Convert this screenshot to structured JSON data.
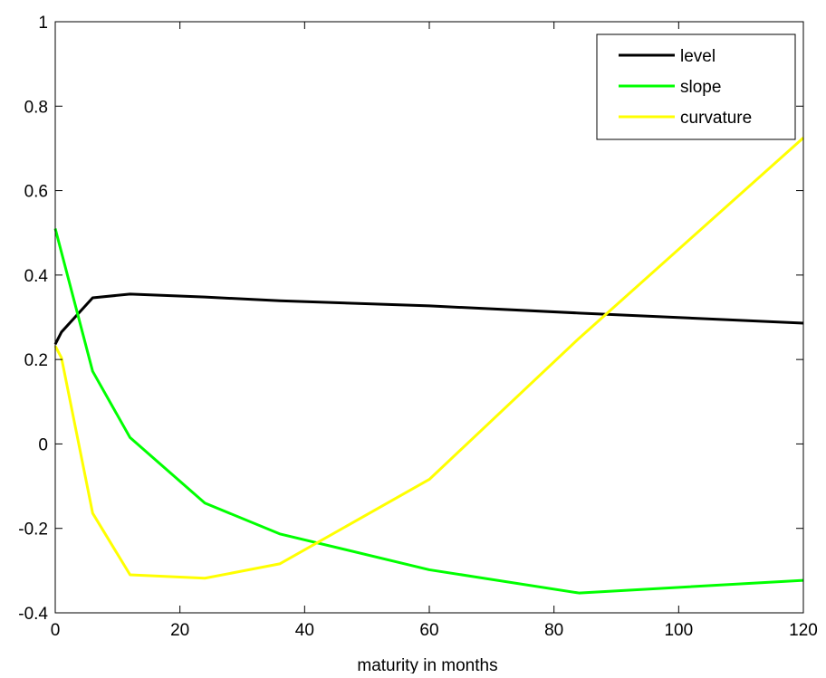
{
  "chart_data": {
    "type": "line",
    "title": "",
    "xlabel": "maturity in months",
    "ylabel": "",
    "xlim": [
      0,
      120
    ],
    "ylim": [
      -0.4,
      1
    ],
    "x_ticks": [
      0,
      20,
      40,
      60,
      80,
      100,
      120
    ],
    "x_tick_labels": [
      "0",
      "20",
      "40",
      "60",
      "80",
      "100",
      "120"
    ],
    "y_ticks": [
      -0.4,
      -0.2,
      0,
      0.2,
      0.4,
      0.6,
      0.8,
      1
    ],
    "y_tick_labels": [
      "-0.4",
      "-0.2",
      "0",
      "0.2",
      "0.4",
      "0.6",
      "0.8",
      "1"
    ],
    "grid": false,
    "legend_position": "top-right",
    "series": [
      {
        "name": "level",
        "color": "#000000",
        "x": [
          0,
          1,
          6,
          12,
          24,
          36,
          60,
          84,
          120
        ],
        "y": [
          0.236,
          0.265,
          0.346,
          0.355,
          0.348,
          0.339,
          0.327,
          0.31,
          0.286
        ]
      },
      {
        "name": "slope",
        "color": "#00ff00",
        "x": [
          0,
          6,
          12,
          24,
          36,
          60,
          84,
          120
        ],
        "y": [
          0.51,
          0.172,
          0.015,
          -0.14,
          -0.213,
          -0.298,
          -0.353,
          -0.323
        ]
      },
      {
        "name": "curvature",
        "color": "#ffff00",
        "x": [
          0,
          1,
          6,
          12,
          24,
          36,
          60,
          84,
          120
        ],
        "y": [
          0.232,
          0.204,
          -0.164,
          -0.31,
          -0.318,
          -0.284,
          -0.084,
          0.25,
          0.725
        ]
      }
    ]
  }
}
